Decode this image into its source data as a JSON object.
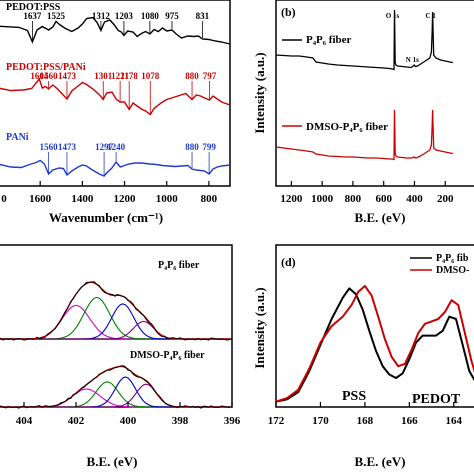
{
  "chart_data": [
    {
      "type": "line",
      "panel": "a",
      "xlabel": "Wavenumber (cm⁻¹)",
      "ylabel": "",
      "xlim": [
        1800,
        700
      ],
      "x_reversed": true,
      "x_ticks": [
        "1600",
        "1400",
        "1200",
        "1000",
        "800"
      ],
      "x_tick_values": [
        1600,
        1400,
        1200,
        1000,
        800
      ],
      "series": [
        {
          "name": "PEDOT:PSS",
          "color": "#000000",
          "x": [
            1800,
            1750,
            1700,
            1660,
            1637,
            1615,
            1590,
            1560,
            1540,
            1525,
            1505,
            1480,
            1450,
            1420,
            1400,
            1380,
            1350,
            1330,
            1312,
            1295,
            1270,
            1250,
            1230,
            1215,
            1203,
            1185,
            1160,
            1140,
            1120,
            1100,
            1080,
            1060,
            1040,
            1020,
            1000,
            975,
            955,
            930,
            900,
            870,
            850,
            831,
            800,
            770,
            740,
            700
          ],
          "y": [
            26.2,
            26.8,
            27.4,
            30.5,
            42.0,
            30.0,
            26.5,
            30.0,
            27.0,
            21.5,
            25.0,
            28.5,
            31.5,
            28.0,
            24.0,
            18.5,
            17.5,
            22.5,
            30.5,
            22.0,
            20.0,
            24.5,
            30.5,
            32.0,
            35.5,
            31.0,
            32.0,
            36.5,
            33.5,
            31.5,
            34.0,
            29.5,
            31.5,
            28.0,
            31.0,
            30.0,
            34.0,
            38.0,
            36.0,
            36.5,
            36.0,
            39.0,
            39.5,
            41.0,
            42.0,
            44.0
          ]
        },
        {
          "name": "PEDOT:PSS/PANi",
          "color": "#cc0000",
          "x": [
            1800,
            1740,
            1680,
            1640,
            1620,
            1604,
            1590,
            1575,
            1560,
            1540,
            1520,
            1500,
            1473,
            1450,
            1420,
            1400,
            1380,
            1350,
            1320,
            1301,
            1285,
            1260,
            1240,
            1221,
            1200,
            1178,
            1160,
            1140,
            1120,
            1100,
            1078,
            1060,
            1040,
            1020,
            1000,
            970,
            940,
            910,
            880,
            860,
            840,
            820,
            797,
            780,
            760,
            740,
            700
          ],
          "y": [
            88.0,
            90.5,
            90.0,
            88.5,
            83.0,
            79.0,
            88.0,
            86.5,
            89.0,
            85.0,
            88.5,
            93.0,
            99.0,
            91.0,
            86.0,
            82.5,
            84.5,
            89.0,
            94.5,
            99.5,
            93.0,
            92.0,
            99.0,
            102.0,
            102.0,
            109.5,
            103.0,
            106.0,
            109.0,
            111.0,
            114.5,
            108.5,
            105.0,
            102.0,
            99.5,
            97.5,
            95.5,
            93.5,
            99.5,
            95.0,
            96.0,
            98.0,
            100.0,
            96.0,
            99.0,
            102.0,
            105.0
          ]
        },
        {
          "name": "PANi",
          "color": "#1f3bcf",
          "x": [
            1800,
            1740,
            1690,
            1650,
            1620,
            1600,
            1580,
            1560,
            1540,
            1510,
            1490,
            1473,
            1450,
            1420,
            1400,
            1380,
            1360,
            1340,
            1320,
            1297,
            1280,
            1260,
            1240,
            1220,
            1200,
            1180,
            1150,
            1120,
            1080,
            1050,
            1020,
            990,
            960,
            930,
            900,
            880,
            860,
            840,
            820,
            799,
            780,
            760,
            740,
            700
          ],
          "y": [
            164.0,
            167.0,
            167.5,
            164.5,
            162.5,
            160.5,
            164.0,
            174.0,
            170.0,
            168.0,
            168.5,
            175.0,
            171.0,
            167.0,
            165.0,
            166.0,
            169.0,
            171.5,
            174.0,
            176.0,
            172.0,
            168.0,
            162.0,
            167.0,
            165.5,
            164.0,
            163.0,
            163.0,
            164.0,
            164.5,
            165.5,
            166.0,
            166.5,
            166.0,
            165.5,
            169.0,
            170.0,
            170.5,
            171.0,
            174.0,
            169.0,
            167.0,
            166.0,
            165.0
          ]
        }
      ],
      "annotations": [
        {
          "text": "1637",
          "x": 1637,
          "y": 42.0,
          "series": "PEDOT:PSS"
        },
        {
          "text": "1525",
          "x": 1525,
          "y": 21.5,
          "series": "PEDOT:PSS"
        },
        {
          "text": "1312",
          "x": 1312,
          "y": 30.5,
          "series": "PEDOT:PSS"
        },
        {
          "text": "1203",
          "x": 1203,
          "y": 35.5,
          "series": "PEDOT:PSS"
        },
        {
          "text": "1080",
          "x": 1080,
          "y": 34.0,
          "series": "PEDOT:PSS"
        },
        {
          "text": "975",
          "x": 975,
          "y": 30.0,
          "series": "PEDOT:PSS"
        },
        {
          "text": "831",
          "x": 831,
          "y": 39.0,
          "series": "PEDOT:PSS"
        },
        {
          "text": "1604",
          "x": 1604,
          "y": 79.0,
          "series": "PEDOT:PSS/PANi"
        },
        {
          "text": "1560",
          "x": 1560,
          "y": 89.0,
          "series": "PEDOT:PSS/PANi"
        },
        {
          "text": "1473",
          "x": 1473,
          "y": 99.0,
          "series": "PEDOT:PSS/PANi"
        },
        {
          "text": "1301",
          "x": 1301,
          "y": 99.5,
          "series": "PEDOT:PSS/PANi"
        },
        {
          "text": "1221",
          "x": 1221,
          "y": 102.0,
          "series": "PEDOT:PSS/PANi"
        },
        {
          "text": "1178",
          "x": 1178,
          "y": 109.5,
          "series": "PEDOT:PSS/PANi"
        },
        {
          "text": "1078",
          "x": 1078,
          "y": 114.5,
          "series": "PEDOT:PSS/PANi"
        },
        {
          "text": "880",
          "x": 880,
          "y": 99.5,
          "series": "PEDOT:PSS/PANi"
        },
        {
          "text": "797",
          "x": 797,
          "y": 100.0,
          "series": "PEDOT:PSS/PANi"
        },
        {
          "text": "1560",
          "x": 1560,
          "y": 174.0,
          "series": "PANi"
        },
        {
          "text": "1473",
          "x": 1473,
          "y": 175.0,
          "series": "PANi"
        },
        {
          "text": "1297",
          "x": 1297,
          "y": 176.0,
          "series": "PANi"
        },
        {
          "text": "1240",
          "x": 1240,
          "y": 162.0,
          "series": "PANi"
        },
        {
          "text": "880",
          "x": 880,
          "y": 169.0,
          "series": "PANi"
        },
        {
          "text": "799",
          "x": 799,
          "y": 174.0,
          "series": "PANi"
        }
      ],
      "grid": false
    },
    {
      "type": "line",
      "panel": "b",
      "label": "(b)",
      "xlabel": "B.E. (eV)",
      "ylabel": "Intensity (a.u.)",
      "xlim": [
        1300,
        0
      ],
      "x_reversed": true,
      "x_ticks": [
        "1200",
        "1000",
        "800",
        "600",
        "400",
        "200"
      ],
      "x_tick_values": [
        1200,
        1000,
        800,
        600,
        400,
        200
      ],
      "series": [
        {
          "name": "P₄P₆ fiber",
          "color": "#000000",
          "x": [
            1300,
            1250,
            1200,
            1150,
            1100,
            1060,
            1040,
            1000,
            960,
            900,
            850,
            800,
            750,
            700,
            650,
            600,
            560,
            545,
            533,
            530,
            525,
            520,
            510,
            480,
            450,
            420,
            401,
            395,
            380,
            350,
            320,
            300,
            290,
            285,
            282,
            275,
            260,
            230,
            200,
            170,
            150
          ],
          "y": [
            55.0,
            55.5,
            56.0,
            56.0,
            57.0,
            58.0,
            62.0,
            63.0,
            64.0,
            65.0,
            65.5,
            66.0,
            66.5,
            67.0,
            67.5,
            68.0,
            68.5,
            69.0,
            69.5,
            10.0,
            63.0,
            65.0,
            66.0,
            66.5,
            67.0,
            67.5,
            65.0,
            66.5,
            66.0,
            63.0,
            60.0,
            58.0,
            52.0,
            30.0,
            12.0,
            55.0,
            58.0,
            60.0,
            61.0,
            62.0,
            62.5
          ]
        },
        {
          "name": "DMSO-P₄P₆ fiber",
          "color": "#cc0000",
          "x": [
            1300,
            1250,
            1200,
            1150,
            1100,
            1060,
            1040,
            1000,
            960,
            900,
            850,
            800,
            750,
            700,
            650,
            600,
            560,
            545,
            533,
            530,
            525,
            520,
            510,
            480,
            450,
            420,
            401,
            395,
            380,
            350,
            320,
            300,
            290,
            285,
            282,
            275,
            260,
            230,
            200,
            170,
            150
          ],
          "y": [
            147.0,
            148.0,
            149.0,
            150.0,
            151.0,
            152.0,
            154.0,
            155.0,
            156.0,
            156.5,
            157.0,
            157.0,
            157.5,
            158.0,
            158.0,
            158.5,
            159.0,
            159.0,
            159.5,
            110.0,
            154.0,
            156.0,
            157.0,
            157.5,
            158.0,
            158.0,
            157.0,
            158.0,
            157.5,
            155.0,
            152.0,
            150.0,
            145.0,
            125.0,
            110.0,
            148.0,
            150.0,
            151.0,
            152.0,
            153.0,
            153.5
          ]
        }
      ],
      "annotations": [
        {
          "text": "O 1s",
          "x": 530,
          "y": 10.0
        },
        {
          "text": "N 1s",
          "x": 401,
          "y": 65.0
        },
        {
          "text": "C 1",
          "x": 282,
          "y": 12.0
        }
      ],
      "grid": false
    },
    {
      "type": "line",
      "panel": "c",
      "xlabel": "B.E. (eV)",
      "ylabel": "",
      "xlim": [
        405,
        396
      ],
      "x_reversed": true,
      "x_ticks": [
        "404",
        "402",
        "400",
        "398",
        "396"
      ],
      "x_tick_values": [
        404,
        402,
        400,
        398,
        396
      ],
      "subplots": [
        {
          "name": "P₄P₆ fiber",
          "envelope_color": "#000000",
          "fit_color": "#cc0000",
          "components": [
            {
              "color": "#cc00cc",
              "center": 402.0,
              "height": 0.42,
              "width": 0.75
            },
            {
              "color": "#008000",
              "center": 401.2,
              "height": 0.52,
              "width": 0.7
            },
            {
              "color": "#0000cc",
              "center": 400.2,
              "height": 0.44,
              "width": 0.6
            },
            {
              "color": "#800080",
              "center": 399.4,
              "height": 0.22,
              "width": 0.55
            }
          ]
        },
        {
          "name": "DMSO-P₄P₆ fiber",
          "envelope_color": "#000000",
          "fit_color": "#cc0000",
          "components": [
            {
              "color": "#cc00cc",
              "center": 401.6,
              "height": 0.3,
              "width": 0.75
            },
            {
              "color": "#008000",
              "center": 400.8,
              "height": 0.42,
              "width": 0.6
            },
            {
              "color": "#0000cc",
              "center": 400.1,
              "height": 0.5,
              "width": 0.55
            },
            {
              "color": "#800080",
              "center": 399.3,
              "height": 0.38,
              "width": 0.55
            }
          ]
        }
      ],
      "grid": false
    },
    {
      "type": "line",
      "panel": "d",
      "label": "(d)",
      "xlabel": "B.E. (eV)",
      "ylabel": "Intensity (a.u.)",
      "xlim": [
        172,
        163
      ],
      "x_reversed": true,
      "x_ticks": [
        "172",
        "170",
        "168",
        "166",
        "164"
      ],
      "x_tick_values": [
        172,
        170,
        168,
        166,
        164
      ],
      "series": [
        {
          "name": "P₄P₆ fib",
          "color": "#000000",
          "x": [
            172,
            171.5,
            171,
            170.5,
            170,
            169.5,
            169,
            168.7,
            168.4,
            168.1,
            167.8,
            167.5,
            167.2,
            166.9,
            166.6,
            166.3,
            166.0,
            165.7,
            165.4,
            165.1,
            164.8,
            164.5,
            164.2,
            163.9,
            163.6,
            163.3,
            163.0
          ],
          "y": [
            0.02,
            0.04,
            0.1,
            0.28,
            0.5,
            0.72,
            0.9,
            0.98,
            0.93,
            0.8,
            0.62,
            0.45,
            0.32,
            0.25,
            0.22,
            0.26,
            0.38,
            0.52,
            0.58,
            0.58,
            0.58,
            0.62,
            0.74,
            0.72,
            0.5,
            0.28,
            0.18
          ]
        },
        {
          "name": "DMSO-",
          "color": "#cc0000",
          "x": [
            172,
            171.5,
            171,
            170.5,
            170,
            169.5,
            169,
            168.6,
            168.3,
            168.0,
            167.7,
            167.4,
            167.1,
            166.8,
            166.5,
            166.2,
            165.9,
            165.6,
            165.3,
            165.0,
            164.7,
            164.4,
            164.1,
            163.8,
            163.5,
            163.2,
            163.0
          ],
          "y": [
            0.02,
            0.05,
            0.12,
            0.3,
            0.52,
            0.66,
            0.74,
            0.84,
            0.95,
            1.0,
            0.92,
            0.74,
            0.55,
            0.4,
            0.32,
            0.34,
            0.46,
            0.6,
            0.68,
            0.7,
            0.72,
            0.78,
            0.88,
            0.84,
            0.6,
            0.36,
            0.24
          ]
        }
      ],
      "annotations": [
        {
          "text": "PSS",
          "x": 168.4
        },
        {
          "text": "PEDOT",
          "x": 165.0
        }
      ],
      "grid": false
    }
  ]
}
